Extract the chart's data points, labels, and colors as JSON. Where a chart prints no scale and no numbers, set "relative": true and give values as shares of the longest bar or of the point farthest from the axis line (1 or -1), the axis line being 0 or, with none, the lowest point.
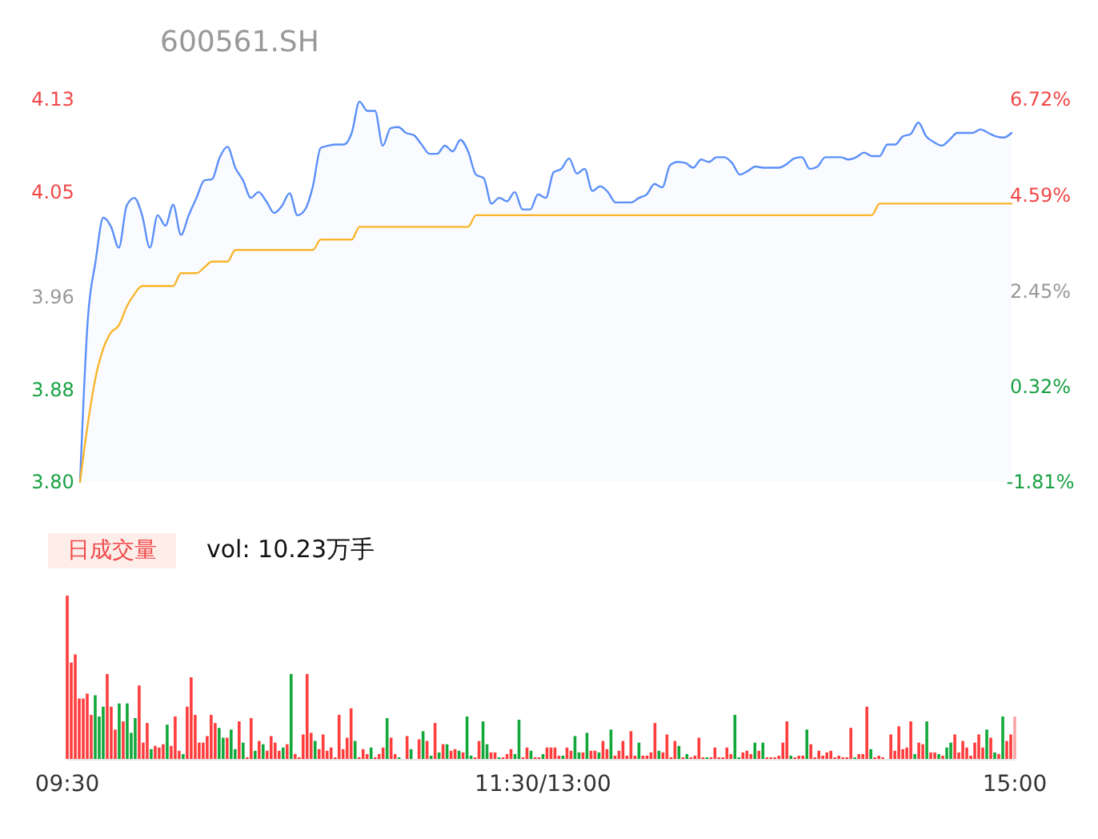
{
  "chart_data": [
    {
      "type": "area",
      "title": "600561.SH",
      "ylim": [
        3.8,
        4.13
      ],
      "yticks": [
        {
          "value": 3.8,
          "label": "3.80"
        },
        {
          "value": 3.88,
          "label": "3.88"
        },
        {
          "value": 3.96,
          "label": "3.96"
        },
        {
          "value": 4.05,
          "label": "4.05"
        },
        {
          "value": 4.13,
          "label": "4.13"
        }
      ],
      "y2lim": [
        -1.81,
        6.72
      ],
      "y2ticks": [
        {
          "value": -1.81,
          "label": "-1.81%"
        },
        {
          "value": 0.32,
          "label": "0.32%"
        },
        {
          "value": 2.45,
          "label": "2.45%"
        },
        {
          "value": 4.59,
          "label": "4.59%"
        },
        {
          "value": 6.72,
          "label": "6.72%"
        }
      ],
      "categories": [
        null,
        null,
        null,
        null,
        null,
        null,
        null,
        null,
        null,
        null,
        null,
        null,
        null,
        null,
        null,
        null,
        null,
        null,
        null,
        null,
        null,
        null,
        null,
        null,
        null,
        null,
        null,
        null,
        null,
        null,
        null,
        null,
        null,
        null,
        null,
        null,
        null,
        null,
        null,
        null,
        null,
        null,
        null,
        null,
        null,
        null,
        null,
        null,
        null,
        null,
        null,
        null,
        null,
        null,
        null,
        null,
        null,
        null,
        null,
        null,
        null,
        null,
        null,
        null,
        null,
        null,
        null,
        null,
        null,
        null,
        null,
        null,
        null,
        null,
        null,
        null,
        null,
        null,
        null,
        null,
        null,
        null,
        null,
        null,
        null,
        null,
        null,
        null,
        null,
        null,
        null,
        null,
        null,
        null,
        null,
        null,
        null,
        null,
        null,
        null,
        null,
        null,
        null,
        null,
        null,
        null,
        null,
        null,
        null,
        null,
        null,
        null,
        null,
        null,
        null,
        null,
        null,
        null,
        null,
        null,
        null
      ],
      "series": [
        {
          "type": "area",
          "color": "#5b8ff9",
          "values": [
            3.8,
            3.94,
            3.99,
            4.028,
            4.02,
            4.002,
            4.038,
            4.045,
            4.03,
            4.002,
            4.03,
            4.021,
            4.039,
            4.013,
            4.03,
            4.045,
            4.06,
            4.061,
            4.08,
            4.089,
            4.071,
            4.06,
            4.045,
            4.05,
            4.042,
            4.032,
            4.038,
            4.049,
            4.03,
            4.035,
            4.055,
            4.088,
            4.09,
            4.091,
            4.091,
            4.101,
            4.128,
            4.12,
            4.12,
            4.09,
            4.105,
            4.106,
            4.101,
            4.099,
            4.091,
            4.083,
            4.083,
            4.09,
            4.085,
            4.095,
            4.085,
            4.065,
            4.062,
            4.04,
            4.045,
            4.042,
            4.05,
            4.035,
            4.035,
            4.048,
            4.045,
            4.067,
            4.07,
            4.079,
            4.066,
            4.07,
            4.051,
            4.055,
            4.05,
            4.041,
            4.041,
            4.041,
            4.045,
            4.048,
            4.057,
            4.054,
            4.073,
            4.076,
            4.075,
            4.071,
            4.078,
            4.076,
            4.08,
            4.08,
            4.075,
            4.065,
            4.068,
            4.072,
            4.071,
            4.071,
            4.071,
            4.074,
            4.079,
            4.08,
            4.07,
            4.072,
            4.08,
            4.08,
            4.08,
            4.078,
            4.08,
            4.084,
            4.081,
            4.081,
            4.091,
            4.091,
            4.098,
            4.1,
            4.11,
            4.098,
            4.093,
            4.09,
            4.095,
            4.101,
            4.101,
            4.101,
            4.104,
            4.101,
            4.098,
            4.097,
            4.101
          ]
        },
        {
          "type": "line",
          "color": "#f9b52b",
          "values": [
            3.8,
            3.85,
            3.89,
            3.915,
            3.929,
            3.935,
            3.951,
            3.962,
            3.969,
            3.969,
            3.969,
            3.969,
            3.969,
            3.98,
            3.98,
            3.98,
            3.985,
            3.99,
            3.99,
            3.99,
            4.0,
            4.0,
            4.0,
            4.0,
            4.0,
            4.0,
            4.0,
            4.0,
            4.0,
            4.0,
            4.0,
            4.009,
            4.009,
            4.009,
            4.009,
            4.009,
            4.02,
            4.02,
            4.02,
            4.02,
            4.02,
            4.02,
            4.02,
            4.02,
            4.02,
            4.02,
            4.02,
            4.02,
            4.02,
            4.02,
            4.02,
            4.03,
            4.03,
            4.03,
            4.03,
            4.03,
            4.03,
            4.03,
            4.03,
            4.03,
            4.03,
            4.03,
            4.03,
            4.03,
            4.03,
            4.03,
            4.03,
            4.03,
            4.03,
            4.03,
            4.03,
            4.03,
            4.03,
            4.03,
            4.03,
            4.03,
            4.03,
            4.03,
            4.03,
            4.03,
            4.03,
            4.03,
            4.03,
            4.03,
            4.03,
            4.03,
            4.03,
            4.03,
            4.03,
            4.03,
            4.03,
            4.03,
            4.03,
            4.03,
            4.03,
            4.03,
            4.03,
            4.03,
            4.03,
            4.03,
            4.03,
            4.03,
            4.03,
            4.04,
            4.04,
            4.04,
            4.04,
            4.04,
            4.04,
            4.04,
            4.04,
            4.04,
            4.04,
            4.04,
            4.04,
            4.04,
            4.04,
            4.04,
            4.04,
            4.04,
            4.04
          ]
        }
      ]
    },
    {
      "type": "bar",
      "relative": true,
      "annotations": [
        "日成交量",
        "vol: 10.23万手"
      ],
      "categories": [
        "09:30",
        null,
        null,
        null,
        null,
        null,
        null,
        null,
        null,
        null,
        null,
        null,
        null,
        null,
        null,
        null,
        null,
        null,
        null,
        null,
        null,
        null,
        null,
        null,
        null,
        null,
        null,
        null,
        null,
        null,
        null,
        null,
        null,
        null,
        null,
        null,
        null,
        null,
        null,
        null,
        null,
        null,
        null,
        null,
        null,
        null,
        null,
        null,
        null,
        null,
        null,
        null,
        null,
        null,
        null,
        null,
        null,
        null,
        null,
        null,
        null,
        null,
        null,
        null,
        null,
        null,
        null,
        null,
        null,
        null,
        null,
        null,
        null,
        null,
        null,
        null,
        null,
        null,
        null,
        null,
        null,
        null,
        null,
        null,
        null,
        null,
        null,
        null,
        null,
        null,
        null,
        null,
        null,
        null,
        null,
        null,
        null,
        null,
        null,
        null,
        null,
        null,
        null,
        null,
        null,
        null,
        null,
        null,
        null,
        null,
        null,
        null,
        null,
        null,
        null,
        null,
        null,
        null,
        null,
        "11:30/13:00",
        null,
        null,
        null,
        null,
        null,
        null,
        null,
        null,
        null,
        null,
        null,
        null,
        null,
        null,
        null,
        null,
        null,
        null,
        null,
        null,
        null,
        null,
        null,
        null,
        null,
        null,
        null,
        null,
        null,
        null,
        null,
        null,
        null,
        null,
        null,
        null,
        null,
        null,
        null,
        null,
        null,
        null,
        null,
        null,
        null,
        null,
        null,
        null,
        null,
        null,
        null,
        null,
        null,
        null,
        null,
        null,
        null,
        null,
        null,
        null,
        null,
        null,
        null,
        null,
        null,
        null,
        null,
        null,
        null,
        null,
        null,
        null,
        null,
        null,
        null,
        null,
        null,
        null,
        null,
        null,
        null,
        null,
        null,
        null,
        null,
        null,
        null,
        null,
        null,
        null,
        null,
        null,
        null,
        null,
        null,
        null,
        null,
        null,
        null,
        null,
        null,
        null,
        null,
        null,
        null,
        null,
        null,
        null,
        null,
        null,
        null,
        null,
        null,
        null,
        null,
        null,
        null,
        "15:00"
      ],
      "values": [
        1.0,
        0.59,
        0.64,
        0.37,
        0.37,
        0.4,
        0.27,
        0.39,
        0.26,
        0.32,
        0.52,
        0.32,
        0.18,
        0.34,
        0.23,
        0.34,
        0.16,
        0.25,
        0.45,
        0.1,
        0.22,
        0.06,
        0.08,
        0.07,
        0.09,
        0.21,
        0.08,
        0.26,
        0.05,
        0.03,
        0.32,
        0.5,
        0.27,
        0.1,
        0.1,
        0.14,
        0.27,
        0.22,
        0.19,
        0.13,
        0.13,
        0.18,
        0.06,
        0.23,
        0.1,
        0.01,
        0.25,
        0.05,
        0.11,
        0.09,
        0.05,
        0.14,
        0.1,
        0.05,
        0.07,
        0.09,
        0.52,
        0.03,
        0.01,
        0.15,
        0.52,
        0.16,
        0.11,
        0.06,
        0.15,
        0.05,
        0.07,
        0.01,
        0.27,
        0.06,
        0.13,
        0.31,
        0.11,
        0.01,
        0.06,
        0.03,
        0.07,
        0.01,
        0.03,
        0.07,
        0.25,
        0.13,
        0.03,
        0.01,
        0,
        0.14,
        0.06,
        0,
        0.12,
        0.17,
        0.11,
        0.02,
        0.22,
        0.04,
        0.09,
        0.09,
        0.05,
        0.06,
        0.05,
        0.04,
        0.26,
        0.02,
        0.01,
        0.11,
        0.23,
        0.09,
        0.04,
        0.04,
        0.01,
        0.01,
        0.03,
        0.06,
        0.03,
        0.24,
        0.01,
        0.07,
        0.05,
        0.01,
        0.01,
        0.03,
        0.07,
        0.07,
        0.07,
        0.02,
        0.02,
        0.07,
        0.05,
        0.14,
        0.04,
        0.04,
        0.16,
        0.05,
        0.05,
        0.04,
        0.11,
        0.06,
        0.18,
        0.02,
        0.05,
        0.11,
        0.02,
        0.17,
        0.02,
        0.1,
        0.02,
        0.02,
        0.04,
        0.22,
        0.05,
        0.04,
        0.15,
        0.01,
        0.11,
        0.08,
        0.01,
        0.03,
        0.01,
        0.02,
        0.13,
        0.01,
        0.01,
        0.01,
        0.07,
        0.01,
        0.01,
        0.07,
        0.03,
        0.27,
        0.01,
        0.04,
        0.05,
        0.03,
        0.1,
        0.05,
        0.1,
        0.01,
        0.01,
        0.01,
        0.02,
        0.1,
        0.23,
        0.02,
        0.01,
        0.02,
        0.02,
        0.18,
        0.09,
        0.01,
        0.05,
        0.02,
        0.04,
        0.05,
        0.01,
        0.02,
        0.01,
        0.01,
        0.19,
        0.01,
        0.03,
        0.03,
        0.32,
        0.06,
        0.01,
        0.02,
        0.01,
        0,
        0.15,
        0.05,
        0.2,
        0.06,
        0.07,
        0.23,
        0.03,
        0.1,
        0.09,
        0.23,
        0.04,
        0.04,
        0.03,
        0.02,
        0.07,
        0.1,
        0.15,
        0.04,
        0.11,
        0.07,
        0.02,
        0.1,
        0.15,
        0.07,
        0.18,
        0.13,
        0.04,
        0.03,
        0.26,
        0.11,
        0.15,
        0.26
      ],
      "colors": [
        "#ff3e3e",
        "#ff3e3e",
        "#ff3e3e",
        "#ff3e3e",
        "#ff3e3e",
        "#ff3e3e",
        "#ff3e3e",
        "#14a83b",
        "#14a83b",
        "#14a83b",
        "#ff3e3e",
        "#ff3e3e",
        "#ff3e3e",
        "#14a83b",
        "#ff3e3e",
        "#14a83b",
        "#14a83b",
        "#14a83b",
        "#ff3e3e",
        "#ff3e3e",
        "#ff3e3e",
        "#14a83b",
        "#ff3e3e",
        "#ff3e3e",
        "#ff3e3e",
        "#14a83b",
        "#ff3e3e",
        "#ff3e3e",
        "#ff3e3e",
        "#14a83b",
        "#ff3e3e",
        "#ff3e3e",
        "#ff3e3e",
        "#ff3e3e",
        "#ff3e3e",
        "#ff3e3e",
        "#ff3e3e",
        "#ff3e3e",
        "#14a83b",
        "#14a83b",
        "#ff3e3e",
        "#14a83b",
        "#14a83b",
        "#ff3e3e",
        "#14a83b",
        "#ff3e3e",
        "#ff3e3e",
        "#14a83b",
        "#ff3e3e",
        "#14a83b",
        "#ff3e3e",
        "#ff3e3e",
        "#ff3e3e",
        "#ff3e3e",
        "#14a83b",
        "#ff3e3e",
        "#14a83b",
        "#ff3e3e",
        "#ff3e3e",
        "#ff3e3e",
        "#ff3e3e",
        "#ff3e3e",
        "#14a83b",
        "#ff3e3e",
        "#ff3e3e",
        "#ff3e3e",
        "#ff3e3e",
        "#ff3e3e",
        "#ff3e3e",
        "#ff3e3e",
        "#ff3e3e",
        "#ff3e3e",
        "#14a83b",
        "#ff3e3e",
        "#ff3e3e",
        "#ff3e3e",
        "#14a83b",
        "#ff3e3e",
        "#ff3e3e",
        "#ff3e3e",
        "#14a83b",
        "#ff3e3e",
        "#ff3e3e",
        "#14a83b",
        "#ff3e3e",
        "#ff3e3e",
        "#14a83b",
        "#ff3e3e",
        "#ff3e3e",
        "#14a83b",
        "#ff3e3e",
        "#14a83b",
        "#ff3e3e",
        "#14a83b",
        "#ff3e3e",
        "#14a83b",
        "#ff3e3e",
        "#ff3e3e",
        "#14a83b",
        "#ff3e3e",
        "#14a83b",
        "#14a83b",
        "#ff3e3e",
        "#ff3e3e",
        "#14a83b",
        "#14a83b",
        "#ff3e3e",
        "#ff3e3e",
        "#14a83b",
        "#ff3e3e",
        "#ff3e3e",
        "#ff3e3e",
        "#14a83b",
        "#14a83b",
        "#ff3e3e",
        "#ff3e3e",
        "#14a83b",
        "#ff3e3e",
        "#ff3e3e",
        "#14a83b",
        "#ff3e3e",
        "#ff3e3e",
        "#ff3e3e",
        "#ff3e3e",
        "#14a83b",
        "#ff3e3e",
        "#ff3e3e",
        "#14a83b",
        "#14a83b",
        "#ff3e3e",
        "#14a83b",
        "#ff3e3e",
        "#ff3e3e",
        "#14a83b",
        "#ff3e3e",
        "#ff3e3e",
        "#14a83b",
        "#ff3e3e",
        "#ff3e3e",
        "#ff3e3e",
        "#ff3e3e",
        "#ff3e3e",
        "#ff3e3e",
        "#14a83b",
        "#ff3e3e",
        "#ff3e3e",
        "#ff3e3e",
        "#ff3e3e",
        "#14a83b",
        "#ff3e3e",
        "#ff3e3e",
        "#ff3e3e",
        "#ff3e3e",
        "#14a83b",
        "#ff3e3e",
        "#14a83b",
        "#ff3e3e",
        "#ff3e3e",
        "#ff3e3e",
        "#ff3e3e",
        "#14a83b",
        "#ff3e3e",
        "#ff3e3e",
        "#ff3e3e",
        "#ff3e3e",
        "#ff3e3e",
        "#ff3e3e",
        "#14a83b",
        "#14a83b",
        "#ff3e3e",
        "#ff3e3e",
        "#ff3e3e",
        "#14a83b",
        "#ff3e3e",
        "#14a83b",
        "#ff3e3e",
        "#ff3e3e",
        "#ff3e3e",
        "#ff3e3e",
        "#ff3e3e",
        "#ff3e3e",
        "#14a83b",
        "#ff3e3e",
        "#ff3e3e",
        "#ff3e3e",
        "#14a83b",
        "#ff3e3e",
        "#ff3e3e",
        "#ff3e3e",
        "#ff3e3e",
        "#ff3e3e",
        "#ff3e3e",
        "#ff3e3e",
        "#ff3e3e",
        "#ff3e3e",
        "#ff3e3e",
        "#ff3e3e",
        "#14a83b",
        "#ff3e3e",
        "#ff3e3e",
        "#ff3e3e",
        "#14a83b",
        "#ff3e3e",
        "#ff3e3e",
        "#ff3e3e",
        "#ff3e3e",
        "#ff3e3e",
        "#ff3e3e",
        "#ff3e3e",
        "#ff3e3e",
        "#ff3e3e",
        "#ff3e3e",
        "#14a83b",
        "#ff3e3e",
        "#ff3e3e",
        "#14a83b",
        "#ff3e3e",
        "#ff3e3e",
        "#14a83b",
        "#ff3e3e",
        "#14a83b",
        "#14a83b",
        "#ff3e3e",
        "#ff3e3e",
        "#ff3e3e",
        "#ff3e3e",
        "#ff3e3e",
        "#ff3e3e",
        "#ff3e3e",
        "#ff3e3e",
        "#14a83b",
        "#ff3e3e",
        "#14a83b",
        "#ff3e3e",
        "#14a83b",
        "#ff3e3e",
        "#ff3e3e",
        "#ffa3a3"
      ]
    }
  ]
}
